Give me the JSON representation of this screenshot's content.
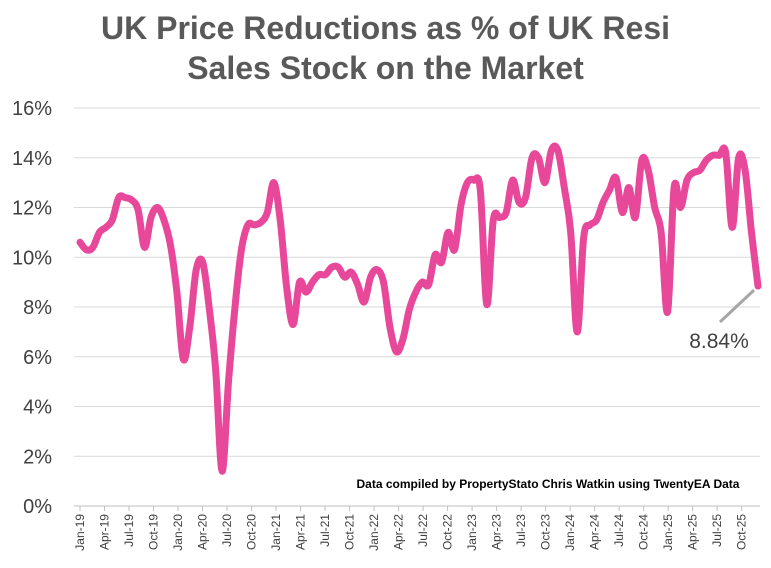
{
  "chart_data": {
    "type": "line",
    "title": [
      "UK Price Reductions as % of UK Resi",
      "Sales Stock on the Market"
    ],
    "source_note": "Data compiled by PropertyStato Chris Watkin using TwentyEA Data",
    "y_ticks": [
      "0%",
      "2%",
      "4%",
      "6%",
      "8%",
      "10%",
      "12%",
      "14%",
      "16%"
    ],
    "ylim": [
      0,
      16
    ],
    "x_tick_labels": [
      "Jan-19",
      "Apr-19",
      "Jul-19",
      "Oct-19",
      "Jan-20",
      "Apr-20",
      "Jul-20",
      "Oct-20",
      "Jan-21",
      "Apr-21",
      "Jul-21",
      "Oct-21",
      "Jan-22",
      "Apr-22",
      "Jul-22",
      "Oct-22",
      "Jan-23",
      "Apr-23",
      "Jul-23",
      "Oct-23",
      "Jan-24",
      "Apr-24",
      "Jul-24",
      "Oct-24",
      "Jan-25",
      "Apr-25",
      "Jul-25",
      "Oct-25"
    ],
    "x_range_months": [
      0,
      83
    ],
    "line_color": "#E8489A",
    "callout": {
      "label": "8.84%",
      "value": 8.84,
      "month_index": 83
    },
    "series": [
      {
        "values": [
          [
            0,
            10.6
          ],
          [
            0.5,
            10.3
          ],
          [
            1,
            10.4
          ],
          [
            1.5,
            11.0
          ],
          [
            2,
            11.2
          ],
          [
            2.5,
            11.5
          ],
          [
            3,
            12.4
          ],
          [
            3.5,
            12.4
          ],
          [
            4,
            12.3
          ],
          [
            4.5,
            11.9
          ],
          [
            5,
            10.4
          ],
          [
            5.5,
            11.6
          ],
          [
            6,
            12.0
          ],
          [
            6.5,
            11.5
          ],
          [
            7,
            10.5
          ],
          [
            7.5,
            8.6
          ],
          [
            8,
            5.9
          ],
          [
            8.5,
            7.2
          ],
          [
            9,
            9.5
          ],
          [
            9.5,
            9.8
          ],
          [
            10,
            8.0
          ],
          [
            10.5,
            5.5
          ],
          [
            11,
            1.4
          ],
          [
            11.5,
            5.0
          ],
          [
            12,
            8.0
          ],
          [
            12.5,
            10.3
          ],
          [
            13,
            11.3
          ],
          [
            13.5,
            11.3
          ],
          [
            14,
            11.4
          ],
          [
            14.5,
            11.8
          ],
          [
            15,
            13.0
          ],
          [
            15.5,
            11.5
          ],
          [
            16,
            8.8
          ],
          [
            16.5,
            7.3
          ],
          [
            17,
            9.0
          ],
          [
            17.5,
            8.6
          ],
          [
            18,
            9.0
          ],
          [
            18.5,
            9.3
          ],
          [
            19,
            9.3
          ],
          [
            19.5,
            9.6
          ],
          [
            20,
            9.6
          ],
          [
            20.5,
            9.2
          ],
          [
            21,
            9.4
          ],
          [
            21.5,
            8.9
          ],
          [
            22,
            8.2
          ],
          [
            22.5,
            9.2
          ],
          [
            23,
            9.5
          ],
          [
            23.5,
            9.0
          ],
          [
            24,
            7.2
          ],
          [
            24.5,
            6.2
          ],
          [
            25,
            6.7
          ],
          [
            25.5,
            7.9
          ],
          [
            26,
            8.6
          ],
          [
            26.5,
            9.0
          ],
          [
            27,
            8.9
          ],
          [
            27.5,
            10.1
          ],
          [
            28,
            9.8
          ],
          [
            28.5,
            11.0
          ],
          [
            29,
            10.3
          ],
          [
            29.5,
            12.1
          ],
          [
            30,
            13.0
          ],
          [
            30.5,
            13.1
          ],
          [
            31,
            12.7
          ],
          [
            31.5,
            8.1
          ],
          [
            32,
            11.5
          ],
          [
            32.5,
            11.6
          ],
          [
            33,
            11.8
          ],
          [
            33.5,
            13.1
          ],
          [
            34,
            12.2
          ],
          [
            34.5,
            12.4
          ],
          [
            35,
            14.0
          ],
          [
            35.5,
            14.0
          ],
          [
            36,
            13.0
          ],
          [
            36.5,
            14.3
          ],
          [
            37,
            14.3
          ],
          [
            37.5,
            12.8
          ],
          [
            38,
            11.0
          ],
          [
            38.5,
            7.0
          ],
          [
            39,
            10.8
          ],
          [
            39.5,
            11.3
          ],
          [
            40,
            11.5
          ],
          [
            40.5,
            12.2
          ],
          [
            41,
            12.7
          ],
          [
            41.5,
            13.2
          ],
          [
            42,
            11.8
          ],
          [
            42.5,
            12.8
          ],
          [
            43,
            11.6
          ],
          [
            43.5,
            13.9
          ],
          [
            44,
            13.5
          ],
          [
            44.5,
            12.0
          ],
          [
            45,
            11.0
          ],
          [
            45.5,
            7.8
          ],
          [
            46,
            12.8
          ],
          [
            46.5,
            12.0
          ],
          [
            47,
            13.1
          ],
          [
            47.5,
            13.4
          ],
          [
            48,
            13.5
          ],
          [
            48.5,
            13.9
          ],
          [
            49,
            14.1
          ],
          [
            49.5,
            14.1
          ],
          [
            50,
            14.2
          ],
          [
            50.5,
            11.2
          ],
          [
            51,
            14.0
          ],
          [
            51.5,
            13.5
          ],
          [
            52,
            11.0
          ],
          [
            52.5,
            8.84
          ]
        ]
      }
    ]
  }
}
